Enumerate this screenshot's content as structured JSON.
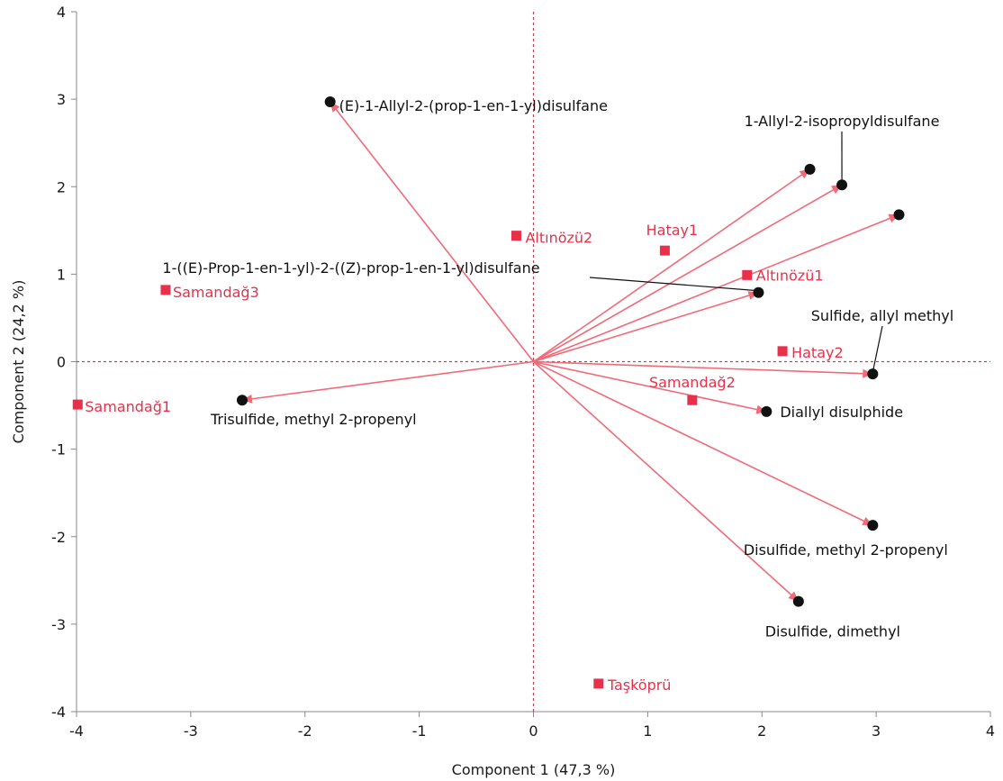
{
  "chart_data": {
    "type": "scatter",
    "title": "",
    "xlabel": "Component 1  (47,3 %)",
    "ylabel": "Component 2  (24,2 %)",
    "xlim": [
      -4,
      4
    ],
    "ylim": [
      -4,
      4
    ],
    "x_ticks": [
      "-4",
      "-3",
      "-2",
      "-1",
      "0",
      "1",
      "2",
      "3",
      "4"
    ],
    "y_ticks": [
      "4",
      "3",
      "2",
      "1",
      "0",
      "-1",
      "-2",
      "-3",
      "-4"
    ],
    "grid": false,
    "reference_lines": {
      "x": 0,
      "y": 0,
      "style": "dashed"
    },
    "colors": {
      "observations": "#e8304a",
      "loadings": "#f06a78",
      "points": "#111111",
      "axes": "#888888"
    },
    "series": [
      {
        "name": "",
        "kind": "observations",
        "points": [
          {
            "label": "Altınözü2",
            "x": -0.15,
            "y": 1.44
          },
          {
            "label": "Hatay1",
            "x": 1.15,
            "y": 1.27
          },
          {
            "label": "Altınözü1",
            "x": 1.87,
            "y": 0.99
          },
          {
            "label": "Samandağ3",
            "x": -3.22,
            "y": 0.82
          },
          {
            "label": "Hatay2",
            "x": 2.18,
            "y": 0.12
          },
          {
            "label": "Samandağ2",
            "x": 1.39,
            "y": -0.44
          },
          {
            "label": "Samandağ1",
            "x": -3.99,
            "y": -0.49
          },
          {
            "label": "Taşköprü",
            "x": 0.57,
            "y": -3.68
          }
        ]
      },
      {
        "name": "",
        "kind": "loadings",
        "vectors": [
          {
            "label": "(E)-1-Allyl-2-(prop-1-en-1-yl)disulfane",
            "x": -1.78,
            "y": 2.97
          },
          {
            "label": "",
            "x": 2.42,
            "y": 2.2
          },
          {
            "label": "1-Allyl-2-isopropyldisulfane",
            "x": 2.7,
            "y": 2.02
          },
          {
            "label": "",
            "x": 3.2,
            "y": 1.68
          },
          {
            "label": "1-((E)-Prop-1-en-1-yl)-2-((Z)-prop-1-en-1-yl)disulfane",
            "x": 1.97,
            "y": 0.79
          },
          {
            "label": "Sulfide, allyl methyl",
            "x": 2.97,
            "y": -0.14
          },
          {
            "label": "Diallyl disulphide",
            "x": 2.04,
            "y": -0.57
          },
          {
            "label": "Trisulfide, methyl 2-propenyl",
            "x": -2.55,
            "y": -0.44
          },
          {
            "label": "Disulfide, methyl 2-propenyl",
            "x": 2.97,
            "y": -1.87
          },
          {
            "label": "Disulfide, dimethyl",
            "x": 2.32,
            "y": -2.74
          }
        ]
      }
    ]
  }
}
